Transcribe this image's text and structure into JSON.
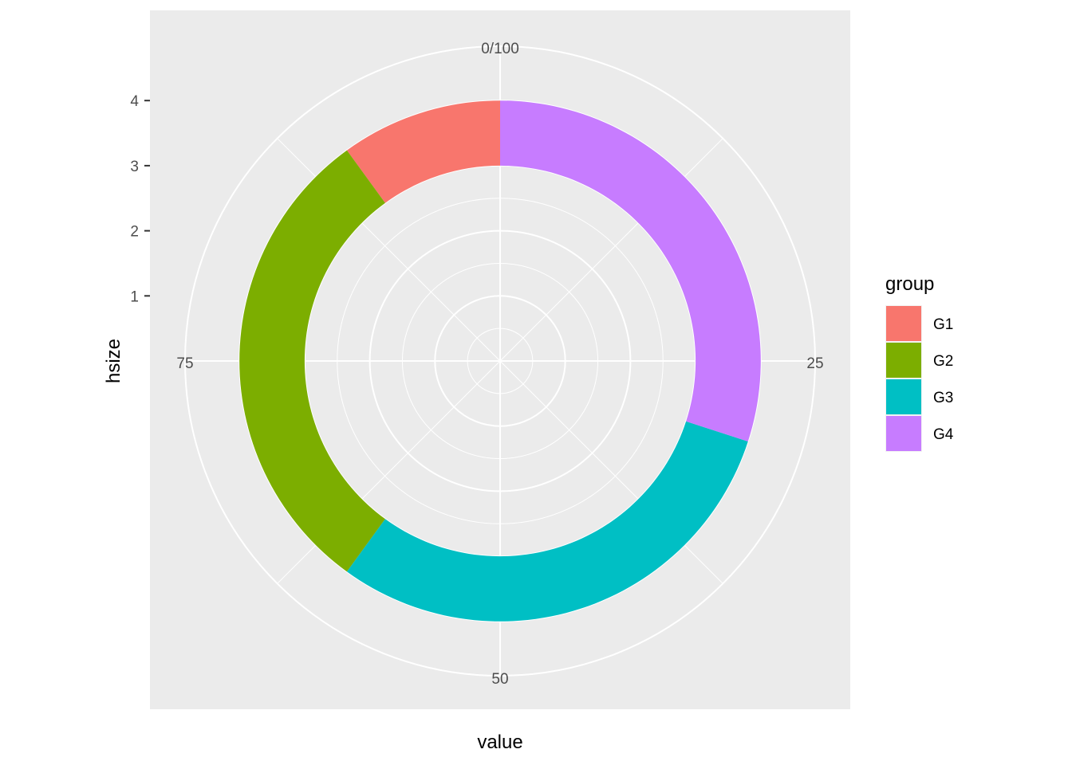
{
  "chart_data": {
    "type": "pie",
    "coord": "polar",
    "xlabel": "value",
    "ylabel": "hsize",
    "theta_ticks": [
      "0/100",
      "25",
      "50",
      "75"
    ],
    "theta_range": [
      0,
      100
    ],
    "r_ticks": [
      "1",
      "2",
      "3",
      "4"
    ],
    "hsize": 4,
    "legend": {
      "title": "group",
      "placement": "right"
    },
    "series": [
      {
        "name": "G1",
        "value": 10,
        "color": "#F8766D"
      },
      {
        "name": "G2",
        "value": 30,
        "color": "#7CAE00"
      },
      {
        "name": "G3",
        "value": 30,
        "color": "#00BFC4"
      },
      {
        "name": "G4",
        "value": 30,
        "color": "#C77CFF"
      }
    ],
    "grid": true,
    "panel_background": "#EBEBEB",
    "grid_color": "#FFFFFF"
  }
}
